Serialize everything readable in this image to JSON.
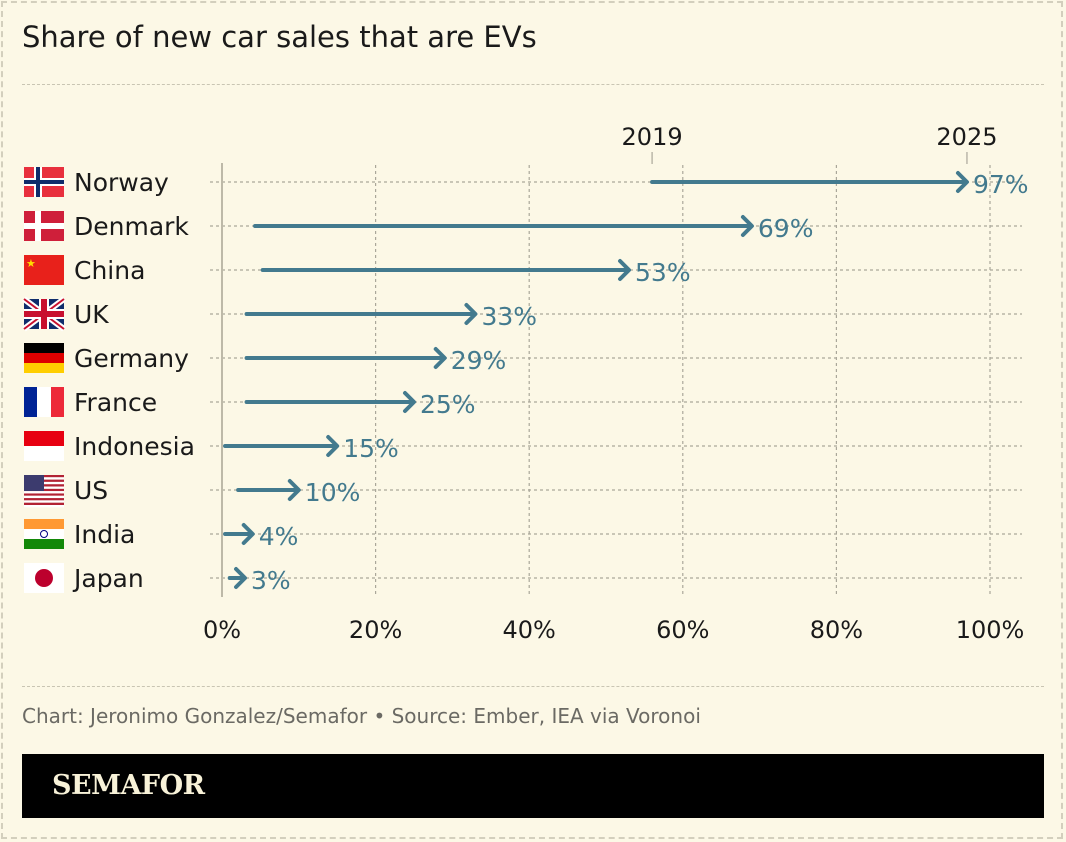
{
  "title": "Share of new car sales that are EVs",
  "credit": "Chart: Jeronimo Gonzalez/Semafor • Source: Ember, IEA via Voronoi",
  "logo": "SEMAFOR",
  "colors": {
    "background": "#fcf8e6",
    "line": "#437a8e",
    "text": "#1a1a1a"
  },
  "chart_data": {
    "type": "arrow-dot",
    "title": "Share of new car sales that are EVs",
    "series_labels": [
      "2019",
      "2025"
    ],
    "xlim": [
      0,
      100
    ],
    "xticks": [
      "0%",
      "20%",
      "40%",
      "60%",
      "80%",
      "100%"
    ],
    "xtick_values": [
      0,
      20,
      40,
      60,
      80,
      100
    ],
    "grid": true,
    "categories": [
      "Norway",
      "Denmark",
      "China",
      "UK",
      "Germany",
      "France",
      "Indonesia",
      "US",
      "India",
      "Japan"
    ],
    "flags": [
      "norway-flag",
      "denmark-flag",
      "china-flag",
      "uk-flag",
      "germany-flag",
      "france-flag",
      "indonesia-flag",
      "us-flag",
      "india-flag",
      "japan-flag"
    ],
    "values_2019": [
      56,
      4.3,
      5.3,
      3.2,
      3.2,
      3.2,
      0.4,
      2.1,
      0.4,
      1
    ],
    "values_2025": [
      97,
      69,
      53,
      33,
      29,
      25,
      15,
      10,
      4,
      3
    ],
    "labels_2025": [
      "97%",
      "69%",
      "53%",
      "33%",
      "29%",
      "25%",
      "15%",
      "10%",
      "4%",
      "3%"
    ]
  }
}
